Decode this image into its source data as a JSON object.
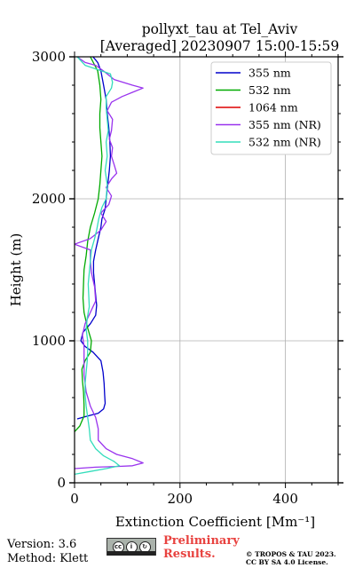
{
  "chart_data": {
    "type": "line",
    "title_line1": "pollyxt_tau at Tel_Aviv",
    "title_line2": "[Averaged] 20230907 15:00-15:59",
    "xlabel": "Extinction Coefficient [Mm⁻¹]",
    "ylabel": "Height (m)",
    "xlim": [
      0,
      500
    ],
    "ylim": [
      0,
      3000
    ],
    "xticks": [
      0,
      200,
      400
    ],
    "yticks": [
      0,
      1000,
      2000,
      3000
    ],
    "grid": true,
    "legend_position": "top-right",
    "series": [
      {
        "name": "355 nm",
        "color": "#0000cc",
        "points": [
          [
            5,
            450
          ],
          [
            25,
            470
          ],
          [
            45,
            490
          ],
          [
            55,
            520
          ],
          [
            58,
            560
          ],
          [
            57,
            620
          ],
          [
            56,
            700
          ],
          [
            54,
            780
          ],
          [
            50,
            860
          ],
          [
            35,
            920
          ],
          [
            20,
            960
          ],
          [
            12,
            1000
          ],
          [
            16,
            1060
          ],
          [
            30,
            1120
          ],
          [
            40,
            1180
          ],
          [
            42,
            1250
          ],
          [
            40,
            1320
          ],
          [
            38,
            1400
          ],
          [
            36,
            1480
          ],
          [
            36,
            1560
          ],
          [
            40,
            1640
          ],
          [
            45,
            1720
          ],
          [
            50,
            1800
          ],
          [
            52,
            1860
          ],
          [
            58,
            1930
          ],
          [
            60,
            2000
          ],
          [
            63,
            2100
          ],
          [
            66,
            2200
          ],
          [
            68,
            2300
          ],
          [
            67,
            2400
          ],
          [
            65,
            2500
          ],
          [
            62,
            2600
          ],
          [
            60,
            2700
          ],
          [
            55,
            2800
          ],
          [
            50,
            2900
          ],
          [
            44,
            2960
          ],
          [
            35,
            3000
          ]
        ]
      },
      {
        "name": "532 nm",
        "color": "#00aa00",
        "points": [
          [
            0,
            360
          ],
          [
            10,
            400
          ],
          [
            18,
            470
          ],
          [
            18,
            550
          ],
          [
            17,
            640
          ],
          [
            15,
            720
          ],
          [
            14,
            800
          ],
          [
            20,
            860
          ],
          [
            30,
            920
          ],
          [
            32,
            1000
          ],
          [
            24,
            1100
          ],
          [
            18,
            1200
          ],
          [
            16,
            1300
          ],
          [
            17,
            1400
          ],
          [
            18,
            1500
          ],
          [
            22,
            1600
          ],
          [
            25,
            1700
          ],
          [
            30,
            1800
          ],
          [
            38,
            1900
          ],
          [
            45,
            2000
          ],
          [
            48,
            2100
          ],
          [
            50,
            2200
          ],
          [
            52,
            2300
          ],
          [
            50,
            2400
          ],
          [
            48,
            2500
          ],
          [
            48,
            2600
          ],
          [
            50,
            2700
          ],
          [
            48,
            2800
          ],
          [
            44,
            2900
          ],
          [
            30,
            3000
          ]
        ]
      },
      {
        "name": "1064 nm",
        "color": "#dd0000",
        "points": []
      },
      {
        "name": "355 nm (NR)",
        "color": "#9933ee",
        "points": [
          [
            0,
            100
          ],
          [
            40,
            110
          ],
          [
            80,
            115
          ],
          [
            110,
            120
          ],
          [
            130,
            140
          ],
          [
            110,
            170
          ],
          [
            80,
            200
          ],
          [
            60,
            240
          ],
          [
            45,
            300
          ],
          [
            45,
            380
          ],
          [
            40,
            460
          ],
          [
            30,
            540
          ],
          [
            22,
            640
          ],
          [
            18,
            760
          ],
          [
            18,
            880
          ],
          [
            18,
            960
          ],
          [
            15,
            1040
          ],
          [
            20,
            1120
          ],
          [
            30,
            1200
          ],
          [
            40,
            1280
          ],
          [
            38,
            1380
          ],
          [
            32,
            1480
          ],
          [
            30,
            1560
          ],
          [
            30,
            1640
          ],
          [
            0,
            1680
          ],
          [
            30,
            1720
          ],
          [
            50,
            1780
          ],
          [
            60,
            1840
          ],
          [
            50,
            1900
          ],
          [
            65,
            1960
          ],
          [
            70,
            2020
          ],
          [
            60,
            2080
          ],
          [
            70,
            2140
          ],
          [
            80,
            2180
          ],
          [
            75,
            2240
          ],
          [
            70,
            2300
          ],
          [
            72,
            2360
          ],
          [
            66,
            2420
          ],
          [
            70,
            2480
          ],
          [
            72,
            2560
          ],
          [
            62,
            2620
          ],
          [
            70,
            2680
          ],
          [
            90,
            2720
          ],
          [
            110,
            2750
          ],
          [
            130,
            2780
          ],
          [
            110,
            2800
          ],
          [
            75,
            2840
          ],
          [
            55,
            2900
          ],
          [
            40,
            2940
          ],
          [
            20,
            2960
          ],
          [
            5,
            3000
          ]
        ]
      },
      {
        "name": "532 nm (NR)",
        "color": "#33ddbb",
        "points": [
          [
            0,
            60
          ],
          [
            30,
            80
          ],
          [
            60,
            100
          ],
          [
            85,
            120
          ],
          [
            75,
            150
          ],
          [
            55,
            190
          ],
          [
            40,
            240
          ],
          [
            30,
            300
          ],
          [
            28,
            380
          ],
          [
            25,
            460
          ],
          [
            22,
            540
          ],
          [
            20,
            620
          ],
          [
            20,
            700
          ],
          [
            22,
            780
          ],
          [
            24,
            860
          ],
          [
            25,
            940
          ],
          [
            25,
            1000
          ],
          [
            22,
            1080
          ],
          [
            24,
            1160
          ],
          [
            28,
            1240
          ],
          [
            27,
            1320
          ],
          [
            26,
            1400
          ],
          [
            28,
            1480
          ],
          [
            30,
            1560
          ],
          [
            32,
            1640
          ],
          [
            38,
            1720
          ],
          [
            42,
            1780
          ],
          [
            46,
            1860
          ],
          [
            52,
            1940
          ],
          [
            60,
            2000
          ],
          [
            62,
            2100
          ],
          [
            58,
            2200
          ],
          [
            62,
            2300
          ],
          [
            60,
            2400
          ],
          [
            64,
            2480
          ],
          [
            62,
            2560
          ],
          [
            60,
            2640
          ],
          [
            60,
            2720
          ],
          [
            70,
            2780
          ],
          [
            72,
            2820
          ],
          [
            68,
            2880
          ],
          [
            20,
            2940
          ],
          [
            5,
            3000
          ]
        ]
      }
    ]
  },
  "footer": {
    "version": "Version: 3.6",
    "method": "Method: Klett",
    "preliminary_line1": "Preliminary",
    "preliminary_line2": "Results.",
    "copyright_line1": "© TROPOS & TAU 2023.",
    "copyright_line2": "CC BY SA 4.0 License.",
    "license_badge_icon": "cc-by-sa-icon"
  }
}
